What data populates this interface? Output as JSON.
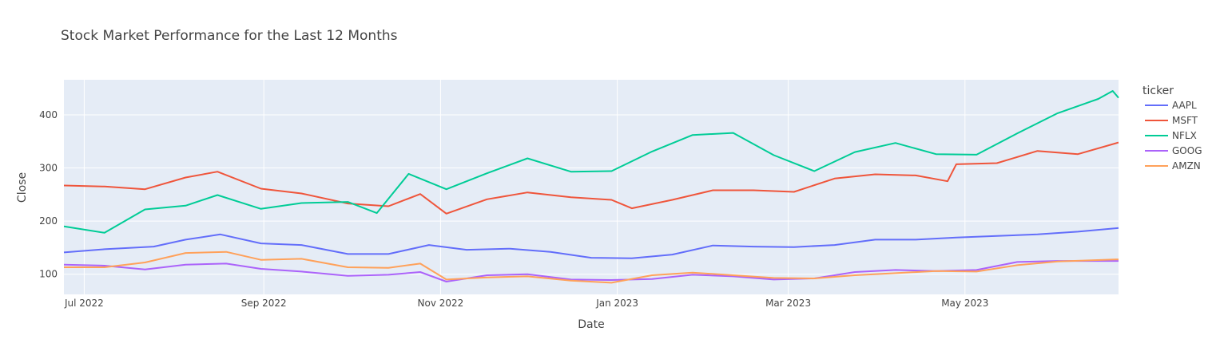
{
  "chart_data": {
    "type": "line",
    "title": "Stock Market Performance for the Last 12 Months",
    "xlabel": "Date",
    "ylabel": "Close",
    "legend_title": "ticker",
    "legend_position": "right",
    "grid": true,
    "x_range": [
      "2022-06-24",
      "2023-06-23"
    ],
    "ylim": [
      62,
      466
    ],
    "x_ticks": [
      {
        "date": "2022-07-01",
        "label": "Jul 2022"
      },
      {
        "date": "2022-09-01",
        "label": "Sep 2022"
      },
      {
        "date": "2022-11-01",
        "label": "Nov 2022"
      },
      {
        "date": "2023-01-01",
        "label": "Jan 2023"
      },
      {
        "date": "2023-03-01",
        "label": "Mar 2023"
      },
      {
        "date": "2023-05-01",
        "label": "May 2023"
      }
    ],
    "y_ticks": [
      100,
      200,
      300,
      400
    ],
    "series": [
      {
        "name": "AAPL",
        "color": "#636efa",
        "points": [
          [
            "2022-06-24",
            141
          ],
          [
            "2022-07-08",
            147
          ],
          [
            "2022-07-25",
            152
          ],
          [
            "2022-08-05",
            165
          ],
          [
            "2022-08-17",
            175
          ],
          [
            "2022-08-31",
            158
          ],
          [
            "2022-09-14",
            155
          ],
          [
            "2022-09-30",
            138
          ],
          [
            "2022-10-14",
            138
          ],
          [
            "2022-10-28",
            155
          ],
          [
            "2022-11-10",
            146
          ],
          [
            "2022-11-25",
            148
          ],
          [
            "2022-12-09",
            142
          ],
          [
            "2022-12-23",
            131
          ],
          [
            "2023-01-06",
            130
          ],
          [
            "2023-01-20",
            137
          ],
          [
            "2023-02-03",
            154
          ],
          [
            "2023-02-17",
            152
          ],
          [
            "2023-03-03",
            151
          ],
          [
            "2023-03-17",
            155
          ],
          [
            "2023-03-31",
            165
          ],
          [
            "2023-04-14",
            165
          ],
          [
            "2023-04-28",
            169
          ],
          [
            "2023-05-12",
            172
          ],
          [
            "2023-05-26",
            175
          ],
          [
            "2023-06-09",
            180
          ],
          [
            "2023-06-23",
            187
          ]
        ]
      },
      {
        "name": "MSFT",
        "color": "#ef553b",
        "points": [
          [
            "2022-06-24",
            267
          ],
          [
            "2022-07-08",
            265
          ],
          [
            "2022-07-22",
            260
          ],
          [
            "2022-08-05",
            282
          ],
          [
            "2022-08-16",
            293
          ],
          [
            "2022-08-31",
            261
          ],
          [
            "2022-09-14",
            252
          ],
          [
            "2022-09-30",
            233
          ],
          [
            "2022-10-14",
            228
          ],
          [
            "2022-10-25",
            251
          ],
          [
            "2022-11-03",
            214
          ],
          [
            "2022-11-17",
            241
          ],
          [
            "2022-12-01",
            254
          ],
          [
            "2022-12-16",
            245
          ],
          [
            "2022-12-30",
            240
          ],
          [
            "2023-01-06",
            224
          ],
          [
            "2023-01-20",
            240
          ],
          [
            "2023-02-03",
            258
          ],
          [
            "2023-02-17",
            258
          ],
          [
            "2023-03-03",
            255
          ],
          [
            "2023-03-17",
            280
          ],
          [
            "2023-03-31",
            288
          ],
          [
            "2023-04-14",
            286
          ],
          [
            "2023-04-25",
            275
          ],
          [
            "2023-04-28",
            307
          ],
          [
            "2023-05-12",
            309
          ],
          [
            "2023-05-26",
            332
          ],
          [
            "2023-06-09",
            326
          ],
          [
            "2023-06-23",
            348
          ]
        ]
      },
      {
        "name": "NFLX",
        "color": "#00cc96",
        "points": [
          [
            "2022-06-24",
            190
          ],
          [
            "2022-07-08",
            178
          ],
          [
            "2022-07-22",
            222
          ],
          [
            "2022-08-05",
            229
          ],
          [
            "2022-08-16",
            249
          ],
          [
            "2022-08-31",
            223
          ],
          [
            "2022-09-14",
            234
          ],
          [
            "2022-09-30",
            236
          ],
          [
            "2022-10-10",
            215
          ],
          [
            "2022-10-21",
            289
          ],
          [
            "2022-11-03",
            260
          ],
          [
            "2022-11-17",
            290
          ],
          [
            "2022-12-01",
            318
          ],
          [
            "2022-12-16",
            293
          ],
          [
            "2022-12-30",
            294
          ],
          [
            "2023-01-13",
            331
          ],
          [
            "2023-01-27",
            362
          ],
          [
            "2023-02-10",
            366
          ],
          [
            "2023-02-24",
            324
          ],
          [
            "2023-03-10",
            294
          ],
          [
            "2023-03-24",
            330
          ],
          [
            "2023-04-07",
            347
          ],
          [
            "2023-04-21",
            326
          ],
          [
            "2023-05-05",
            325
          ],
          [
            "2023-05-19",
            365
          ],
          [
            "2023-06-02",
            403
          ],
          [
            "2023-06-16",
            430
          ],
          [
            "2023-06-21",
            445
          ],
          [
            "2023-06-23",
            432
          ]
        ]
      },
      {
        "name": "GOOG",
        "color": "#ab63fa",
        "points": [
          [
            "2022-06-24",
            118
          ],
          [
            "2022-07-08",
            116
          ],
          [
            "2022-07-22",
            109
          ],
          [
            "2022-08-05",
            118
          ],
          [
            "2022-08-19",
            120
          ],
          [
            "2022-08-31",
            110
          ],
          [
            "2022-09-14",
            105
          ],
          [
            "2022-09-30",
            97
          ],
          [
            "2022-10-14",
            99
          ],
          [
            "2022-10-25",
            104
          ],
          [
            "2022-11-03",
            86
          ],
          [
            "2022-11-17",
            98
          ],
          [
            "2022-12-01",
            100
          ],
          [
            "2022-12-16",
            90
          ],
          [
            "2022-12-30",
            89
          ],
          [
            "2023-01-13",
            91
          ],
          [
            "2023-01-27",
            99
          ],
          [
            "2023-02-10",
            96
          ],
          [
            "2023-02-24",
            90
          ],
          [
            "2023-03-10",
            92
          ],
          [
            "2023-03-24",
            104
          ],
          [
            "2023-04-07",
            108
          ],
          [
            "2023-04-21",
            106
          ],
          [
            "2023-05-05",
            108
          ],
          [
            "2023-05-19",
            123
          ],
          [
            "2023-06-02",
            125
          ],
          [
            "2023-06-23",
            125
          ]
        ]
      },
      {
        "name": "AMZN",
        "color": "#ffa15a",
        "points": [
          [
            "2022-06-24",
            113
          ],
          [
            "2022-07-08",
            113
          ],
          [
            "2022-07-22",
            122
          ],
          [
            "2022-08-05",
            140
          ],
          [
            "2022-08-19",
            142
          ],
          [
            "2022-08-31",
            127
          ],
          [
            "2022-09-14",
            129
          ],
          [
            "2022-09-30",
            113
          ],
          [
            "2022-10-14",
            112
          ],
          [
            "2022-10-25",
            120
          ],
          [
            "2022-11-03",
            90
          ],
          [
            "2022-11-17",
            94
          ],
          [
            "2022-12-01",
            96
          ],
          [
            "2022-12-16",
            88
          ],
          [
            "2022-12-30",
            84
          ],
          [
            "2023-01-13",
            98
          ],
          [
            "2023-01-27",
            103
          ],
          [
            "2023-02-10",
            98
          ],
          [
            "2023-02-24",
            93
          ],
          [
            "2023-03-10",
            92
          ],
          [
            "2023-03-24",
            98
          ],
          [
            "2023-04-07",
            102
          ],
          [
            "2023-04-21",
            106
          ],
          [
            "2023-05-05",
            105
          ],
          [
            "2023-05-19",
            117
          ],
          [
            "2023-06-02",
            124
          ],
          [
            "2023-06-23",
            128
          ]
        ]
      }
    ]
  }
}
